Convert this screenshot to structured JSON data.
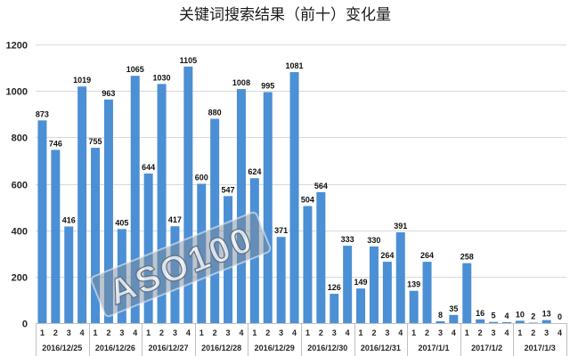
{
  "chart_data": {
    "type": "bar",
    "title": "关键词搜索结果（前十）变化量",
    "ylim": [
      0,
      1200
    ],
    "yticks": [
      0,
      200,
      400,
      600,
      800,
      1000,
      1200
    ],
    "grid": true,
    "bar_color": "#4b8fd5",
    "groups": [
      {
        "label": "2016/12/25",
        "categories": [
          "1",
          "2",
          "3",
          "4"
        ],
        "values": [
          873,
          746,
          416,
          1019
        ]
      },
      {
        "label": "2016/12/26",
        "categories": [
          "1",
          "2",
          "3",
          "4"
        ],
        "values": [
          755,
          963,
          405,
          1065
        ]
      },
      {
        "label": "2016/12/27",
        "categories": [
          "1",
          "2",
          "3",
          "4"
        ],
        "values": [
          644,
          1030,
          417,
          1105
        ]
      },
      {
        "label": "2016/12/28",
        "categories": [
          "1",
          "2",
          "3",
          "4"
        ],
        "values": [
          600,
          880,
          547,
          1008
        ]
      },
      {
        "label": "2016/12/29",
        "categories": [
          "1",
          "2",
          "3",
          "4"
        ],
        "values": [
          624,
          995,
          371,
          1081
        ]
      },
      {
        "label": "2016/12/30",
        "categories": [
          "1",
          "2",
          "3",
          "4"
        ],
        "values": [
          504,
          564,
          126,
          333
        ]
      },
      {
        "label": "2016/12/31",
        "categories": [
          "1",
          "2",
          "3",
          "4"
        ],
        "values": [
          149,
          330,
          264,
          391
        ]
      },
      {
        "label": "2017/1/1",
        "categories": [
          "1",
          "2",
          "3",
          "4"
        ],
        "values": [
          139,
          264,
          8,
          35
        ]
      },
      {
        "label": "2017/1/2",
        "categories": [
          "1",
          "2",
          "3",
          "4"
        ],
        "values": [
          258,
          16,
          5,
          4
        ]
      },
      {
        "label": "2017/1/3",
        "categories": [
          "1",
          "2",
          "3",
          "4"
        ],
        "values": [
          10,
          2,
          13,
          0
        ]
      }
    ]
  },
  "watermark": {
    "text": "ASO100"
  }
}
